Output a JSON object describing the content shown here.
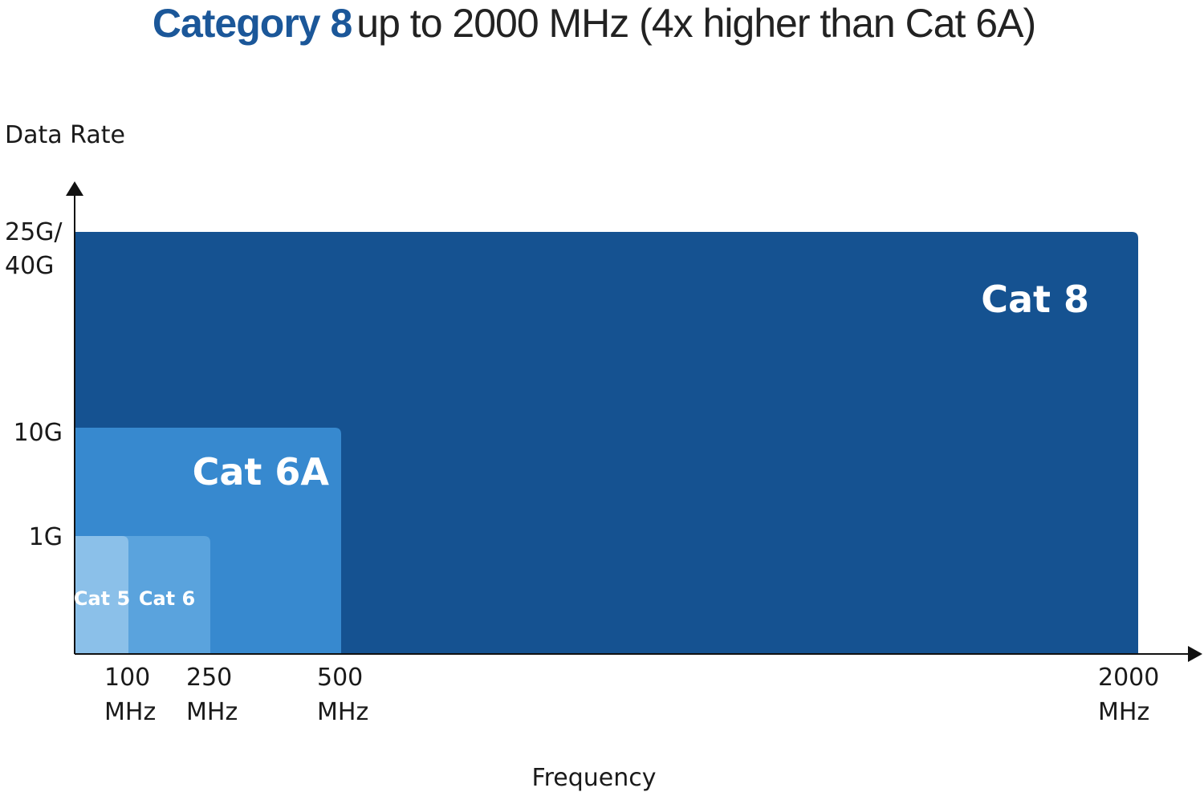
{
  "title": {
    "bold": "Category 8",
    "rest": "up to 2000 MHz (4x higher than Cat 6A)"
  },
  "colors": {
    "title_accent": "#1b5799",
    "cat8": "#155291",
    "cat6a": "#3789cf",
    "cat6": "#5aa3dd",
    "cat5": "#8bc0e9",
    "axis": "#111111"
  },
  "chart_data": {
    "type": "bar",
    "ylabel": "Data Rate",
    "xlabel": "Frequency",
    "x_ticks": [
      {
        "value": 100,
        "line1": "100",
        "line2": "MHz"
      },
      {
        "value": 250,
        "line1": "250",
        "line2": "MHz"
      },
      {
        "value": 500,
        "line1": "500",
        "line2": "MHz"
      },
      {
        "value": 2000,
        "line1": "2000",
        "line2": "MHz"
      }
    ],
    "y_ticks": [
      {
        "level": 1,
        "lines": [
          "1G"
        ]
      },
      {
        "level": 2,
        "lines": [
          "10G"
        ]
      },
      {
        "level": 3,
        "lines": [
          "25G/",
          "40G"
        ]
      }
    ],
    "series": [
      {
        "name": "Cat 8",
        "frequency_mhz": 2000,
        "data_rate": "25G/40G",
        "level": 3,
        "color": "#155291"
      },
      {
        "name": "Cat 6A",
        "frequency_mhz": 500,
        "data_rate": "10G",
        "level": 2,
        "color": "#3789cf"
      },
      {
        "name": "Cat 6",
        "frequency_mhz": 250,
        "data_rate": "1G",
        "level": 1,
        "color": "#5aa3dd"
      },
      {
        "name": "Cat 5",
        "frequency_mhz": 100,
        "data_rate": "1G",
        "level": 1,
        "color": "#8bc0e9"
      }
    ],
    "grid": false
  }
}
